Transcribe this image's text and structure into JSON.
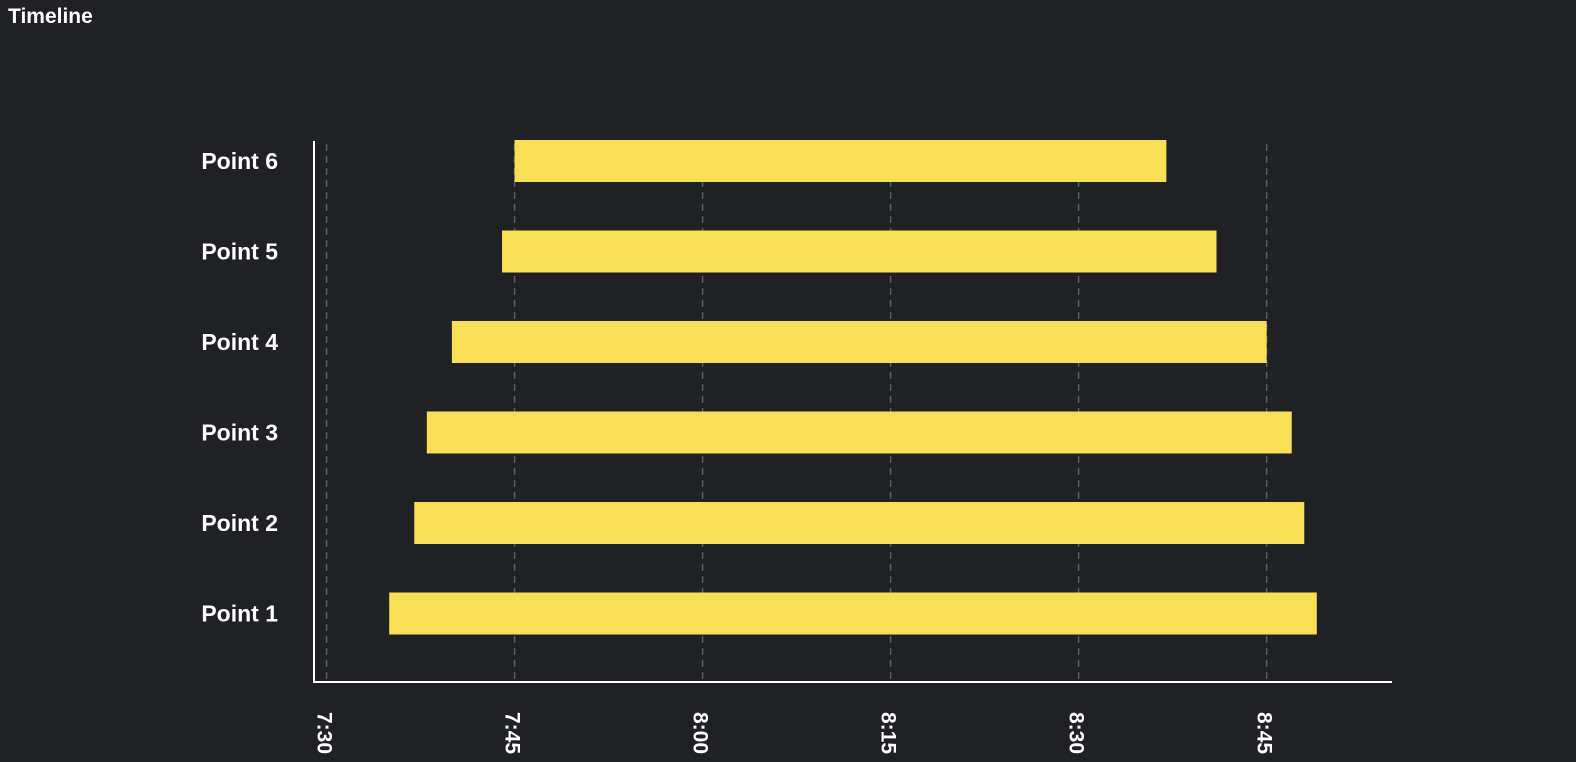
{
  "title": "Timeline",
  "colors": {
    "background": "#1f2125",
    "bar": "#f8df55",
    "axis": "#ffffff",
    "grid": "#5a5c61",
    "text": "#ffffff"
  },
  "chart_data": {
    "type": "bar",
    "orientation": "horizontal",
    "title": "Timeline",
    "xlabel": "",
    "ylabel": "",
    "categories": [
      "Point 6",
      "Point 5",
      "Point 4",
      "Point 3",
      "Point 2",
      "Point 1"
    ],
    "ranges": [
      {
        "category": "Point 6",
        "start": "7:45",
        "end": "8:37"
      },
      {
        "category": "Point 5",
        "start": "7:44",
        "end": "8:41"
      },
      {
        "category": "Point 4",
        "start": "7:40",
        "end": "8:45"
      },
      {
        "category": "Point 3",
        "start": "7:38",
        "end": "8:47"
      },
      {
        "category": "Point 2",
        "start": "7:37",
        "end": "8:48"
      },
      {
        "category": "Point 1",
        "start": "7:35",
        "end": "8:49"
      }
    ],
    "xticks": [
      "7:30",
      "7:45",
      "8:00",
      "8:15",
      "8:30",
      "8:45"
    ],
    "xlim": [
      "7:29",
      "8:55"
    ],
    "grid": true,
    "legend": "none"
  }
}
